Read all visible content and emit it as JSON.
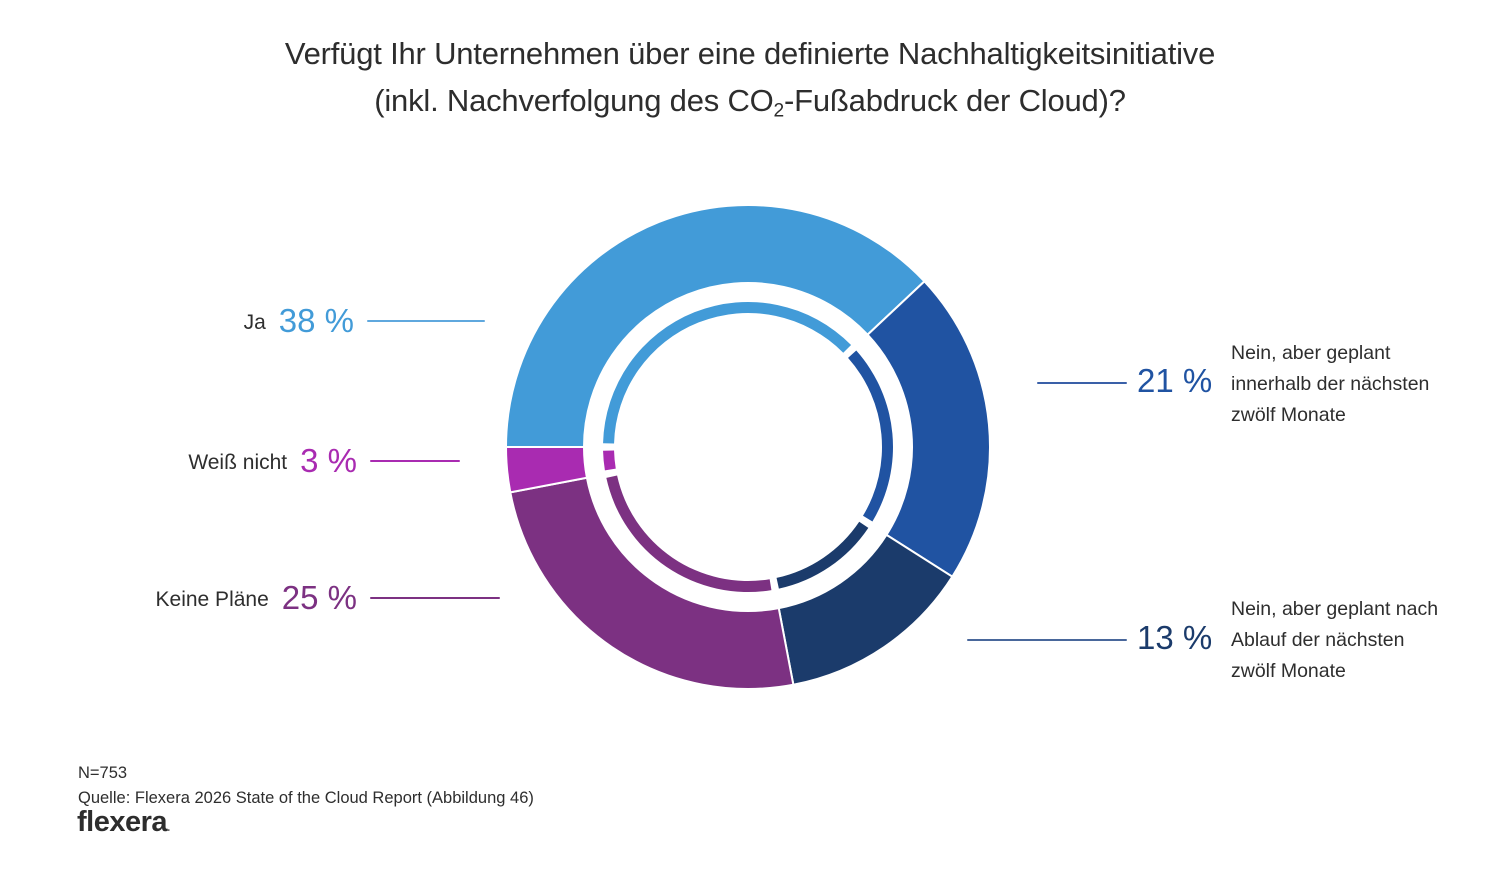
{
  "title": {
    "line1": "Verfügt Ihr Unternehmen über eine definierte Nachhaltigkeitsinitiative",
    "line2_pre": "(inkl. Nachverfolgung des CO",
    "line2_sub": "2",
    "line2_post": "-Fußabdruck der Cloud)?"
  },
  "chart_data": {
    "type": "pie",
    "subtype": "double-ring-donut",
    "title": "Verfügt Ihr Unternehmen über eine definierte Nachhaltigkeitsinitiative (inkl. Nachverfolgung des CO2-Fußabdruck der Cloud)?",
    "units": "%",
    "start_angle_deg": 270,
    "direction": "clockwise",
    "total": 100,
    "series": [
      {
        "label": "Ja",
        "value": 38,
        "color": "#429BD8"
      },
      {
        "label": "Nein, aber geplant innerhalb der nächsten zwölf Monate",
        "value": 21,
        "color": "#2053A2"
      },
      {
        "label": "Nein, aber geplant nach Ablauf der nächsten zwölf Monate",
        "value": 13,
        "color": "#1B3B6B"
      },
      {
        "label": "Keine Pläne",
        "value": 25,
        "color": "#7C3182"
      },
      {
        "label": "Weiß nicht",
        "value": 3,
        "color": "#A92BB1"
      }
    ]
  },
  "callouts": {
    "left": [
      {
        "label": "Ja",
        "pct": "38 %",
        "color": "#429BD8",
        "line_color": "#5FA8DE"
      },
      {
        "label": "Weiß nicht",
        "pct": "3 %",
        "color": "#A92BB1",
        "line_color": "#A92BB1"
      },
      {
        "label": "Keine Pläne",
        "pct": "25 %",
        "color": "#7C3182",
        "line_color": "#7C3182"
      }
    ],
    "right": [
      {
        "pct": "21 %",
        "color": "#2053A2",
        "line_color": "#3A60A8",
        "text": "Nein, aber geplant\ninnerhalb der nächsten\nzwölf Monate"
      },
      {
        "pct": "13 %",
        "color": "#1B3B6B",
        "line_color": "#49679B",
        "text": "Nein, aber geplant nach\nAblauf der nächsten\nzwölf Monate"
      }
    ]
  },
  "footer": {
    "n": "N=753",
    "source": "Quelle: Flexera 2026 State of the Cloud Report (Abbildung 46)",
    "brand": "flexera",
    "brand_dot": "."
  }
}
